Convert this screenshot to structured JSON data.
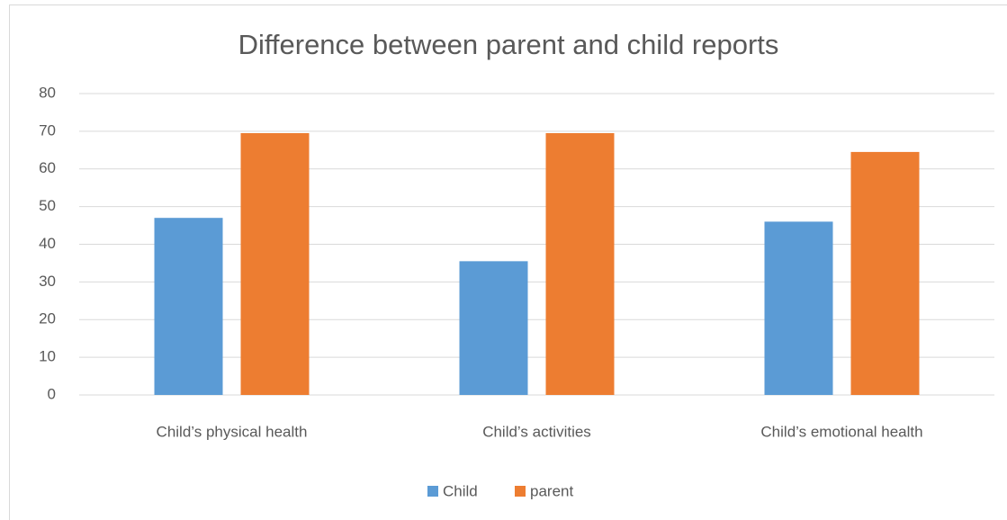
{
  "chart_data": {
    "type": "bar",
    "title": "Difference between parent and child reports",
    "categories": [
      "Child’s physical health",
      "Child’s activities",
      "Child’s emotional health"
    ],
    "series": [
      {
        "name": "Child",
        "color": "#5b9bd5",
        "values": [
          47,
          35.5,
          46
        ]
      },
      {
        "name": "parent",
        "color": "#ed7d31",
        "values": [
          69.5,
          69.5,
          64.5
        ]
      }
    ],
    "ylim": [
      0,
      80
    ],
    "yticks": [
      0,
      10,
      20,
      30,
      40,
      50,
      60,
      70,
      80
    ],
    "grid": true,
    "legend": "bottom"
  }
}
